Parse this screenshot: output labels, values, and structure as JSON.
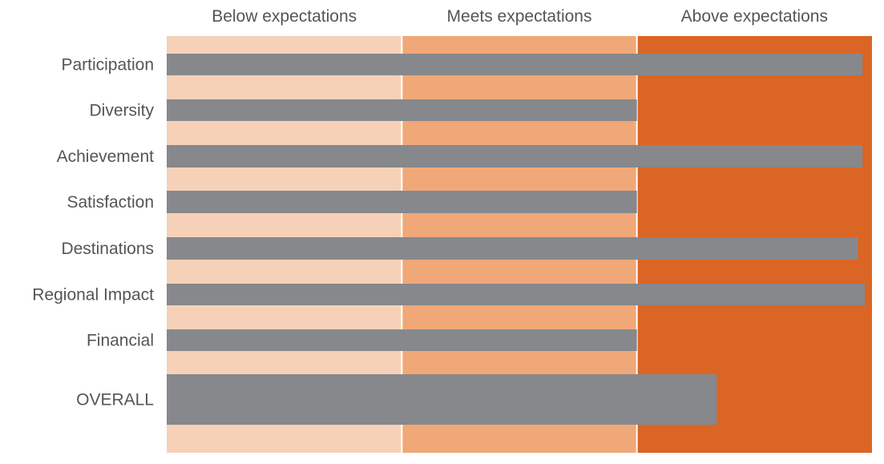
{
  "chart_data": {
    "type": "bar",
    "orientation": "horizontal",
    "title": "",
    "xlabel": "",
    "ylabel": "",
    "xlim": [
      0,
      3
    ],
    "bands": [
      {
        "label": "Below expectations",
        "from": 0,
        "to": 1,
        "color": "#f6d1b8"
      },
      {
        "label": "Meets expectations",
        "from": 1,
        "to": 2,
        "color": "#f0a878"
      },
      {
        "label": "Above expectations",
        "from": 2,
        "to": 3,
        "color": "#db6524"
      }
    ],
    "categories": [
      "Participation",
      "Diversity",
      "Achievement",
      "Satisfaction",
      "Destinations",
      "Regional Impact",
      "Financial",
      "OVERALL"
    ],
    "values": [
      2.96,
      2.0,
      2.96,
      2.0,
      2.94,
      2.97,
      2.0,
      2.34
    ],
    "bar_color": "#86888c"
  }
}
